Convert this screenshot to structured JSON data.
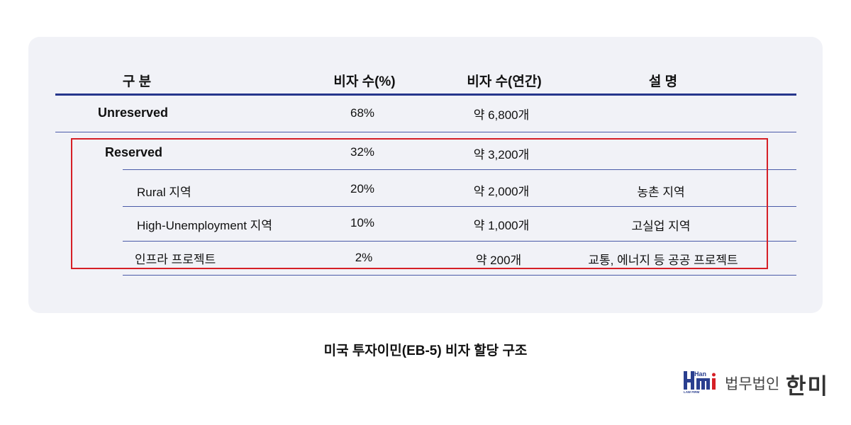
{
  "table": {
    "headers": [
      "구 분",
      "비자 수(%)",
      "비자 수(연간)",
      "설 명"
    ],
    "rows": [
      {
        "category": "Unreserved",
        "percent": "68%",
        "annual": "약 6,800개",
        "description": ""
      },
      {
        "category": "Reserved",
        "percent": "32%",
        "annual": "약 3,200개",
        "description": ""
      },
      {
        "category": "Rural 지역",
        "percent": "20%",
        "annual": "약 2,000개",
        "description": "농촌 지역"
      },
      {
        "category": "High-Unemployment 지역",
        "percent": "10%",
        "annual": "약 1,000개",
        "description": "고실업 지역"
      },
      {
        "category": "인프라 프로젝트",
        "percent": "2%",
        "annual": "약 200개",
        "description": "교통, 에너지 등 공공 프로젝트"
      }
    ]
  },
  "caption": "미국 투자이민(EB-5) 비자 할당 구조",
  "logo": {
    "mark_top": "Han",
    "mark_bottom": "LAW FIRM",
    "text": "법무법인",
    "name": "한미",
    "colors": {
      "primary": "#2a3f8f",
      "accent": "#d61f26"
    }
  }
}
